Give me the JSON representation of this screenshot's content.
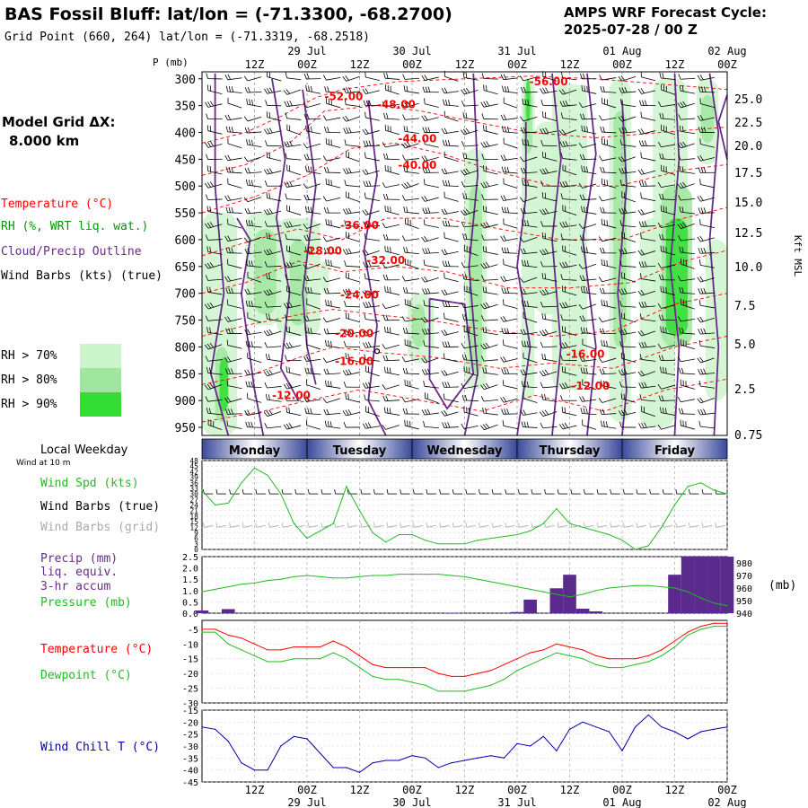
{
  "header": {
    "title": "BAS Fossil Bluff:  lat/lon = (-71.3300, -68.2700)",
    "subtitle": "Grid Point (660, 264) lat/lon = (-71.3319, -68.2518)",
    "cycle_label": "AMPS WRF Forecast Cycle:",
    "cycle_value": "2025-07-28 / 00  Z"
  },
  "left_panel": {
    "model_grid_label": "Model Grid ΔX:",
    "model_grid_value": "8.000 km",
    "legend_temperature": "Temperature (°C)",
    "legend_rh": "RH (%, WRT liq. wat.)",
    "legend_cloud": "Cloud/Precip Outline",
    "legend_wind": "Wind Barbs (kts) (true)",
    "rh_70": "RH > 70%",
    "rh_80": "RH > 80%",
    "rh_90": "RH > 90%",
    "local_weekday": "Local Weekday",
    "wind_at_10m": "Wind at 10 m",
    "wind_spd": "Wind Spd (kts)",
    "wind_barbs_true": "Wind Barbs (true)",
    "wind_barbs_grid": "Wind Barbs (grid)",
    "precip_1": "Precip (mm)",
    "precip_2": "liq. equiv.",
    "precip_3": "3-hr accum",
    "pressure": "Pressure (mb)",
    "temperature": "Temperature (°C)",
    "dewpoint": "Dewpoint (°C)",
    "wind_chill": "Wind Chill T (°C)"
  },
  "colors": {
    "temperature": "#ff0000",
    "rh": "#00bb00",
    "cloud_outline": "#6a2a8c",
    "rh70": "#ccf5cc",
    "rh80": "#a0e6a0",
    "rh90": "#33dd33",
    "precip_bar": "#5a2a8c",
    "pressure": "#22bb22",
    "dewpoint": "#22bb22",
    "wind_chill": "#0000aa",
    "weekday_band_dark": "#3a4a9a",
    "weekday_band_light": "#ffffff"
  },
  "time_axis": {
    "top_hour_labels": [
      "12Z",
      "00Z",
      "12Z",
      "00Z",
      "12Z",
      "00Z",
      "12Z",
      "00Z",
      "12Z",
      "00Z"
    ],
    "top_date_labels": [
      "29 Jul",
      "30 Jul",
      "31 Jul",
      "01 Aug",
      "02 Aug"
    ],
    "bottom_hour_labels": [
      "12Z",
      "00Z",
      "12Z",
      "00Z",
      "12Z",
      "00Z",
      "12Z",
      "00Z",
      "12Z",
      "00Z"
    ],
    "bottom_date_labels": [
      "29 Jul",
      "30 Jul",
      "31 Jul",
      "01 Aug",
      "02 Aug"
    ],
    "weekdays": [
      "Monday",
      "Tuesday",
      "Wednesday",
      "Thursday",
      "Friday"
    ]
  },
  "chart_data": [
    {
      "type": "heatmap",
      "title": "Vertical cross-section",
      "ylabel_left": "P (mb)",
      "ylabel_right": "Kft MSL",
      "pressure_levels": [
        "300",
        "350",
        "400",
        "450",
        "500",
        "550",
        "600",
        "650",
        "700",
        "750",
        "800",
        "850",
        "900",
        "950"
      ],
      "height_levels": [
        "25.0",
        "22.5",
        "20.0",
        "17.5",
        "15.0",
        "12.5",
        "10.0",
        "7.5",
        "5.0",
        "2.5",
        "0.75"
      ],
      "temperature_labels": [
        {
          "text": "-56.00",
          "t": 66,
          "p": 312
        },
        {
          "text": "-52.00",
          "t": 27,
          "p": 340
        },
        {
          "text": "-48.00",
          "t": 37,
          "p": 355
        },
        {
          "text": "-44.00",
          "t": 41,
          "p": 418
        },
        {
          "text": "-40.00",
          "t": 41,
          "p": 468
        },
        {
          "text": "-36.00",
          "t": 30,
          "p": 580
        },
        {
          "text": "-28.00",
          "t": 23,
          "p": 628
        },
        {
          "text": "-32.00",
          "t": 35,
          "p": 645
        },
        {
          "text": "-24.00",
          "t": 30,
          "p": 710
        },
        {
          "text": "-20.00",
          "t": 29,
          "p": 782
        },
        {
          "text": "-16.00",
          "t": 29,
          "p": 834
        },
        {
          "text": "-16.00",
          "t": 73,
          "p": 820
        },
        {
          "text": "-12.00",
          "t": 17,
          "p": 897
        },
        {
          "text": "-12.00",
          "t": 74,
          "p": 880
        }
      ]
    },
    {
      "type": "line",
      "title": "Wind Spd (kts)",
      "yticks": [
        "48",
        "45",
        "42",
        "39",
        "36",
        "33",
        "30",
        "27",
        "24",
        "21",
        "18",
        "15",
        "12",
        "9",
        "6",
        "3",
        "0"
      ],
      "x_hours": [
        0,
        3,
        6,
        9,
        12,
        15,
        18,
        21,
        24,
        27,
        30,
        33,
        36,
        39,
        42,
        45,
        48,
        51,
        54,
        57,
        60,
        63,
        66,
        69,
        72,
        75,
        78,
        81,
        84,
        87,
        90,
        93,
        96,
        99,
        102,
        105,
        108,
        111,
        114,
        117,
        120
      ],
      "values": [
        32,
        24,
        25,
        36,
        44,
        40,
        30,
        14,
        6,
        10,
        14,
        34,
        21,
        9,
        4,
        8,
        8,
        5,
        3,
        3,
        3,
        5,
        6,
        7,
        8,
        10,
        14,
        22,
        14,
        12,
        10,
        8,
        5,
        0,
        2,
        12,
        24,
        34,
        36,
        32,
        30
      ]
    },
    {
      "type": "bar",
      "title": "Precip (mm) liq. equiv. 3-hr accum",
      "yticks": [
        "2.5",
        "2.0",
        "1.5",
        "1.0",
        "0.5",
        "0.0"
      ],
      "ylim": [
        0,
        2.5
      ],
      "x_hours": [
        0,
        3,
        6,
        9,
        12,
        15,
        18,
        21,
        24,
        27,
        30,
        33,
        36,
        39,
        42,
        45,
        48,
        51,
        54,
        57,
        60,
        63,
        66,
        69,
        72,
        75,
        78,
        81,
        84,
        87,
        90,
        93,
        96,
        99,
        102,
        105,
        108,
        111,
        114,
        117,
        120
      ],
      "values": [
        0.12,
        0,
        0.18,
        0,
        0,
        0,
        0,
        0,
        0,
        0,
        0,
        0,
        0,
        0,
        0,
        0,
        0,
        0,
        0,
        0.02,
        0,
        0,
        0,
        0,
        0.05,
        0.6,
        0,
        1.1,
        1.7,
        0.2,
        0.08,
        0,
        0,
        0,
        0,
        0,
        1.7,
        2.5,
        2.5,
        2.5,
        2.5
      ]
    },
    {
      "type": "line",
      "title": "Pressure (mb)",
      "yticks_right": [
        "980",
        "970",
        "960",
        "950",
        "940"
      ],
      "ylim": [
        940,
        985
      ],
      "x_hours": [
        0,
        3,
        6,
        9,
        12,
        15,
        18,
        21,
        24,
        27,
        30,
        33,
        36,
        39,
        42,
        45,
        48,
        51,
        54,
        57,
        60,
        63,
        66,
        69,
        72,
        75,
        78,
        81,
        84,
        87,
        90,
        93,
        96,
        99,
        102,
        105,
        108,
        111,
        114,
        117,
        120
      ],
      "values": [
        957,
        959,
        961,
        963,
        964,
        966,
        967,
        969,
        970,
        969,
        968,
        968,
        969,
        970,
        970,
        971,
        971,
        971,
        971,
        970,
        969,
        967,
        965,
        963,
        961,
        959,
        957,
        955,
        953,
        955,
        958,
        960,
        961,
        962,
        962,
        961,
        960,
        957,
        952,
        948,
        946
      ]
    },
    {
      "type": "line",
      "title": "Temperature / Dewpoint (°C)",
      "yticks": [
        "-5",
        "-10",
        "-15",
        "-20",
        "-25",
        "-30"
      ],
      "ylim": [
        -30,
        -2
      ],
      "x_hours": [
        0,
        3,
        6,
        9,
        12,
        15,
        18,
        21,
        24,
        27,
        30,
        33,
        36,
        39,
        42,
        45,
        48,
        51,
        54,
        57,
        60,
        63,
        66,
        69,
        72,
        75,
        78,
        81,
        84,
        87,
        90,
        93,
        96,
        99,
        102,
        105,
        108,
        111,
        114,
        117,
        120
      ],
      "series": [
        {
          "name": "Temperature",
          "values": [
            -5,
            -5,
            -7,
            -8,
            -10,
            -12,
            -12,
            -11,
            -11,
            -11,
            -9,
            -11,
            -14,
            -17,
            -18,
            -18,
            -18,
            -18,
            -20,
            -21,
            -21,
            -20,
            -19,
            -17,
            -15,
            -13,
            -12,
            -10,
            -11,
            -12,
            -14,
            -15,
            -15,
            -15,
            -14,
            -12,
            -9,
            -6,
            -4,
            -3,
            -3
          ]
        },
        {
          "name": "Dewpoint",
          "values": [
            -6,
            -6,
            -10,
            -12,
            -14,
            -16,
            -16,
            -15,
            -15,
            -15,
            -13,
            -15,
            -18,
            -21,
            -22,
            -22,
            -23,
            -24,
            -26,
            -26,
            -26,
            -25,
            -24,
            -22,
            -19,
            -17,
            -15,
            -13,
            -14,
            -15,
            -17,
            -18,
            -18,
            -17,
            -16,
            -14,
            -11,
            -7,
            -5,
            -4,
            -4
          ]
        }
      ]
    },
    {
      "type": "line",
      "title": "Wind Chill T (°C)",
      "yticks": [
        "-15",
        "-20",
        "-25",
        "-30",
        "-35",
        "-40",
        "-45"
      ],
      "ylim": [
        -45,
        -15
      ],
      "x_hours": [
        0,
        3,
        6,
        9,
        12,
        15,
        18,
        21,
        24,
        27,
        30,
        33,
        36,
        39,
        42,
        45,
        48,
        51,
        54,
        57,
        60,
        63,
        66,
        69,
        72,
        75,
        78,
        81,
        84,
        87,
        90,
        93,
        96,
        99,
        102,
        105,
        108,
        111,
        114,
        117,
        120
      ],
      "values": [
        -22,
        -23,
        -28,
        -37,
        -40,
        -40,
        -30,
        -26,
        -27,
        -33,
        -39,
        -39,
        -41,
        -37,
        -36,
        -36,
        -34,
        -35,
        -39,
        -37,
        -36,
        -35,
        -34,
        -35,
        -29,
        -30,
        -26,
        -32,
        -23,
        -20,
        -22,
        -24,
        -32,
        -22,
        -17,
        -22,
        -24,
        -27,
        -24,
        -23,
        -22
      ]
    }
  ]
}
